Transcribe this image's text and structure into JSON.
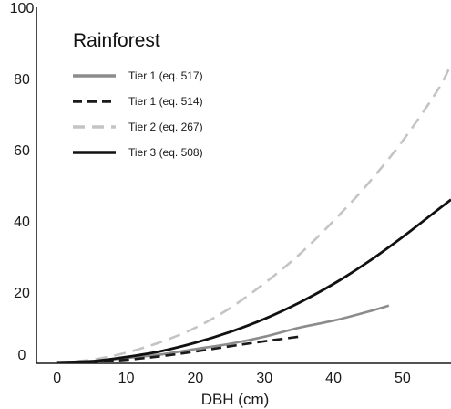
{
  "chart_data": {
    "type": "line",
    "title": "Rainforest",
    "xlabel": "DBH (cm)",
    "ylabel": "",
    "xlim": [
      -3,
      57
    ],
    "ylim": [
      0,
      100
    ],
    "x_ticks": [
      0,
      10,
      20,
      30,
      40,
      50
    ],
    "y_ticks": [
      0,
      20,
      40,
      60,
      80,
      100
    ],
    "grid": false,
    "legend_position": "top-left",
    "series": [
      {
        "name": "Tier 1 (eq. 517)",
        "style": "solid",
        "color": "#8c8c8c",
        "x": [
          0,
          5,
          10,
          15,
          20,
          25,
          30,
          35,
          40,
          45,
          48
        ],
        "y": [
          0.3,
          0.5,
          1.5,
          2.5,
          4.0,
          5.5,
          7.5,
          10.0,
          12.0,
          14.5,
          16.2
        ]
      },
      {
        "name": "Tier 1 (eq. 514)",
        "style": "dashed",
        "color": "#1a1a1a",
        "x": [
          0,
          5,
          10,
          15,
          20,
          25,
          30,
          35
        ],
        "y": [
          0.3,
          0.4,
          1.0,
          2.0,
          3.3,
          4.8,
          6.2,
          7.5
        ]
      },
      {
        "name": "Tier 2 (eq. 267)",
        "style": "dashed",
        "color": "#c4c4c4",
        "x": [
          0,
          5,
          10,
          15,
          20,
          25,
          30,
          35,
          40,
          45,
          50,
          55,
          57
        ],
        "y": [
          0.3,
          1.0,
          3.0,
          6.0,
          10.0,
          15.5,
          22.5,
          30.5,
          40.0,
          50.5,
          62.5,
          76.5,
          84.0
        ]
      },
      {
        "name": "Tier 3 (eq. 508)",
        "style": "solid",
        "color": "#111111",
        "x": [
          0,
          5,
          10,
          15,
          20,
          25,
          30,
          35,
          40,
          45,
          50,
          55,
          57
        ],
        "y": [
          0.3,
          0.6,
          1.8,
          3.4,
          5.8,
          8.8,
          12.5,
          17.0,
          22.3,
          28.5,
          35.5,
          43.0,
          46.0
        ]
      }
    ]
  },
  "colors": {
    "axis": "#1a1a1a",
    "background": "#ffffff"
  }
}
